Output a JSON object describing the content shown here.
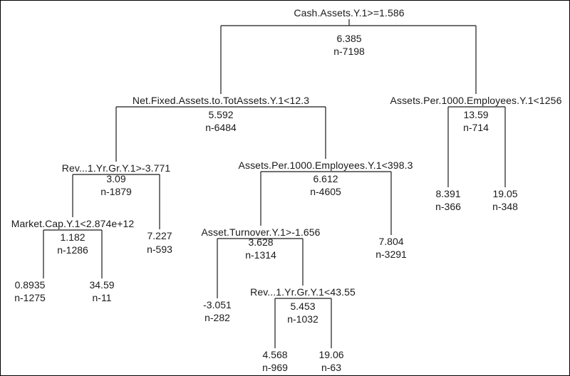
{
  "tree": {
    "splits": [
      {
        "id": "root",
        "label": "Cash.Assets.Y.1>=1.586",
        "value": "6.385",
        "n": "n-7198"
      },
      {
        "id": "s2",
        "label": "Net.Fixed.Assets.to.TotAssets.Y.1<12.3",
        "value": "5.592",
        "n": "n-6484"
      },
      {
        "id": "s3",
        "label": "Assets.Per.1000.Employees.Y.1<1256",
        "value": "13.59",
        "n": "n-714"
      },
      {
        "id": "s4",
        "label": "Rev...1.Yr.Gr.Y.1>-3.771",
        "value": "3.09",
        "n": "n-1879"
      },
      {
        "id": "s5",
        "label": "Assets.Per.1000.Employees.Y.1<398.3",
        "value": "6.612",
        "n": "n-4605"
      },
      {
        "id": "s6",
        "label": "Market.Cap.Y.1<2.874e+12",
        "value": "1.182",
        "n": "n-1286"
      },
      {
        "id": "s7",
        "label": "Asset.Turnover.Y.1>-1.656",
        "value": "3.628",
        "n": "n-1314"
      },
      {
        "id": "s8",
        "label": "Rev...1.Yr.Gr.Y.1<43.55",
        "value": "5.453",
        "n": "n-1032"
      }
    ],
    "leaves": [
      {
        "id": "l1",
        "value": "8.391",
        "n": "n-366"
      },
      {
        "id": "l2",
        "value": "19.05",
        "n": "n-348"
      },
      {
        "id": "l3",
        "value": "7.227",
        "n": "n-593"
      },
      {
        "id": "l4",
        "value": "7.804",
        "n": "n-3291"
      },
      {
        "id": "l5",
        "value": "0.8935",
        "n": "n-1275"
      },
      {
        "id": "l6",
        "value": "34.59",
        "n": "n-11"
      },
      {
        "id": "l7",
        "value": "-3.051",
        "n": "n-282"
      },
      {
        "id": "l8",
        "value": "4.568",
        "n": "n-969"
      },
      {
        "id": "l9",
        "value": "19.06",
        "n": "n-63"
      }
    ]
  },
  "colors": {
    "line": "#1a1a1a",
    "text": "#1a1a1a",
    "background": "#ffffff",
    "border": "#000000"
  }
}
